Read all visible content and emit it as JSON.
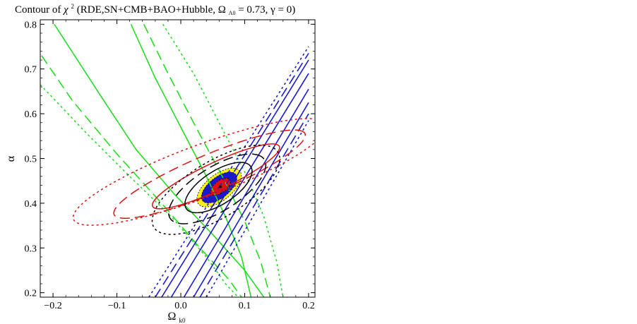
{
  "chart_data": {
    "type": "contour",
    "title": {
      "prefix": "Contour of ",
      "chi": "χ",
      "chi_sup": "2",
      "body": "(RDE,SN+CMB+BAO+Hubble, Ω",
      "omega_sub": "Λ0",
      "suffix": " = 0.73, γ = 0)"
    },
    "xlabel": {
      "symbol": "Ω",
      "sub": "k0"
    },
    "ylabel": "α",
    "xlim": [
      -0.22,
      0.21
    ],
    "ylim": [
      0.19,
      0.81
    ],
    "x_ticks": [
      {
        "value": -0.2,
        "label": "−0.2"
      },
      {
        "value": -0.1,
        "label": "−0.1"
      },
      {
        "value": 0.0,
        "label": "0.0"
      },
      {
        "value": 0.1,
        "label": "0.1"
      },
      {
        "value": 0.2,
        "label": "0.2"
      }
    ],
    "y_ticks": [
      {
        "value": 0.2,
        "label": "0.2"
      },
      {
        "value": 0.3,
        "label": "0.3"
      },
      {
        "value": 0.4,
        "label": "0.4"
      },
      {
        "value": 0.5,
        "label": "0.5"
      },
      {
        "value": 0.6,
        "label": "0.6"
      },
      {
        "value": 0.7,
        "label": "0.7"
      },
      {
        "value": 0.8,
        "label": "0.8"
      }
    ],
    "colors": {
      "green": "#22dd22",
      "blue": "#1a1acc",
      "red": "#dd1111",
      "black": "#000000",
      "yellow": "#f5ef1a"
    },
    "bands": [
      {
        "name": "green",
        "color": "green",
        "style": "solid",
        "points": [
          [
            -0.198,
            0.8
          ],
          [
            -0.13,
            0.65
          ],
          [
            -0.07,
            0.52
          ],
          [
            -0.01,
            0.42
          ],
          [
            0.05,
            0.33
          ],
          [
            0.1,
            0.25
          ],
          [
            0.13,
            0.19
          ]
        ]
      },
      {
        "name": "green",
        "color": "green",
        "style": "solid",
        "points": [
          [
            -0.078,
            0.8
          ],
          [
            -0.04,
            0.68
          ],
          [
            0.0,
            0.57
          ],
          [
            0.04,
            0.46
          ],
          [
            0.07,
            0.37
          ],
          [
            0.095,
            0.28
          ],
          [
            0.11,
            0.19
          ]
        ]
      },
      {
        "name": "green",
        "color": "green",
        "style": "dashed",
        "points": [
          [
            -0.218,
            0.73
          ],
          [
            -0.17,
            0.63
          ],
          [
            -0.1,
            0.51
          ],
          [
            -0.03,
            0.4
          ],
          [
            0.03,
            0.3
          ],
          [
            0.075,
            0.23
          ],
          [
            0.095,
            0.19
          ]
        ]
      },
      {
        "name": "green",
        "color": "green",
        "style": "dashed",
        "points": [
          [
            -0.058,
            0.8
          ],
          [
            -0.02,
            0.69
          ],
          [
            0.02,
            0.58
          ],
          [
            0.065,
            0.46
          ],
          [
            0.1,
            0.36
          ],
          [
            0.125,
            0.27
          ],
          [
            0.14,
            0.19
          ]
        ]
      },
      {
        "name": "green",
        "color": "green",
        "style": "dotted",
        "points": [
          [
            -0.22,
            0.665
          ],
          [
            -0.15,
            0.56
          ],
          [
            -0.08,
            0.46
          ],
          [
            -0.015,
            0.37
          ],
          [
            0.04,
            0.28
          ],
          [
            0.07,
            0.22
          ],
          [
            0.09,
            0.19
          ]
        ]
      },
      {
        "name": "green",
        "color": "green",
        "style": "dotted",
        "points": [
          [
            -0.028,
            0.8
          ],
          [
            0.02,
            0.69
          ],
          [
            0.06,
            0.58
          ],
          [
            0.1,
            0.47
          ],
          [
            0.13,
            0.37
          ],
          [
            0.15,
            0.27
          ],
          [
            0.16,
            0.19
          ]
        ]
      },
      {
        "name": "blue",
        "color": "blue",
        "style": "solid",
        "points": [
          [
            -0.03,
            0.19
          ],
          [
            0.2,
            0.72
          ]
        ]
      },
      {
        "name": "blue",
        "color": "blue",
        "style": "solid",
        "points": [
          [
            -0.015,
            0.19
          ],
          [
            0.2,
            0.69
          ]
        ]
      },
      {
        "name": "blue",
        "color": "blue",
        "style": "solid",
        "points": [
          [
            0.005,
            0.19
          ],
          [
            0.2,
            0.655
          ]
        ]
      },
      {
        "name": "blue",
        "color": "blue",
        "style": "solid",
        "points": [
          [
            0.02,
            0.19
          ],
          [
            0.2,
            0.625
          ]
        ]
      },
      {
        "name": "blue",
        "color": "blue",
        "style": "dashed",
        "points": [
          [
            -0.04,
            0.19
          ],
          [
            0.2,
            0.735
          ]
        ]
      },
      {
        "name": "blue",
        "color": "blue",
        "style": "dashed",
        "points": [
          [
            0.03,
            0.19
          ],
          [
            0.2,
            0.6
          ]
        ]
      },
      {
        "name": "blue",
        "color": "blue",
        "style": "dotted",
        "points": [
          [
            -0.05,
            0.19
          ],
          [
            0.2,
            0.75
          ]
        ]
      },
      {
        "name": "blue",
        "color": "blue",
        "style": "dotted",
        "points": [
          [
            0.04,
            0.19
          ],
          [
            0.2,
            0.585
          ]
        ]
      }
    ],
    "ellipses": [
      {
        "name": "red-dotted",
        "color": "red",
        "style": "dotted",
        "cx": 0.03,
        "cy": 0.47,
        "semi_major": 0.225,
        "semi_minor": 0.055,
        "angle_deg": 29
      },
      {
        "name": "red-dashed",
        "color": "red",
        "style": "dashed",
        "cx": 0.045,
        "cy": 0.465,
        "semi_major": 0.175,
        "semi_minor": 0.04,
        "angle_deg": 32
      },
      {
        "name": "red-solid",
        "color": "red",
        "style": "solid",
        "cx": 0.055,
        "cy": 0.46,
        "semi_major": 0.12,
        "semi_minor": 0.028,
        "angle_deg": 35
      },
      {
        "name": "black-dotted",
        "color": "black",
        "style": "dotted",
        "cx": 0.055,
        "cy": 0.43,
        "semi_major": 0.13,
        "semi_minor": 0.055,
        "angle_deg": 45
      },
      {
        "name": "black-dashed",
        "color": "black",
        "style": "dashed",
        "cx": 0.057,
        "cy": 0.432,
        "semi_major": 0.1,
        "semi_minor": 0.043,
        "angle_deg": 46
      },
      {
        "name": "black-solid",
        "color": "black",
        "style": "solid",
        "cx": 0.059,
        "cy": 0.435,
        "semi_major": 0.07,
        "semi_minor": 0.032,
        "angle_deg": 48
      }
    ],
    "filled_ellipses": [
      {
        "name": "yellow-3sigma",
        "color": "yellow",
        "cx": 0.06,
        "cy": 0.435,
        "semi_major": 0.05,
        "semi_minor": 0.024,
        "angle_deg": 55
      },
      {
        "name": "blue-2sigma",
        "color": "blue",
        "cx": 0.06,
        "cy": 0.435,
        "semi_major": 0.04,
        "semi_minor": 0.019,
        "angle_deg": 55
      },
      {
        "name": "red-1sigma",
        "color": "red",
        "cx": 0.062,
        "cy": 0.437,
        "semi_major": 0.022,
        "semi_minor": 0.011,
        "angle_deg": 55
      }
    ],
    "best_fit": {
      "x": 0.062,
      "y": 0.437
    }
  }
}
